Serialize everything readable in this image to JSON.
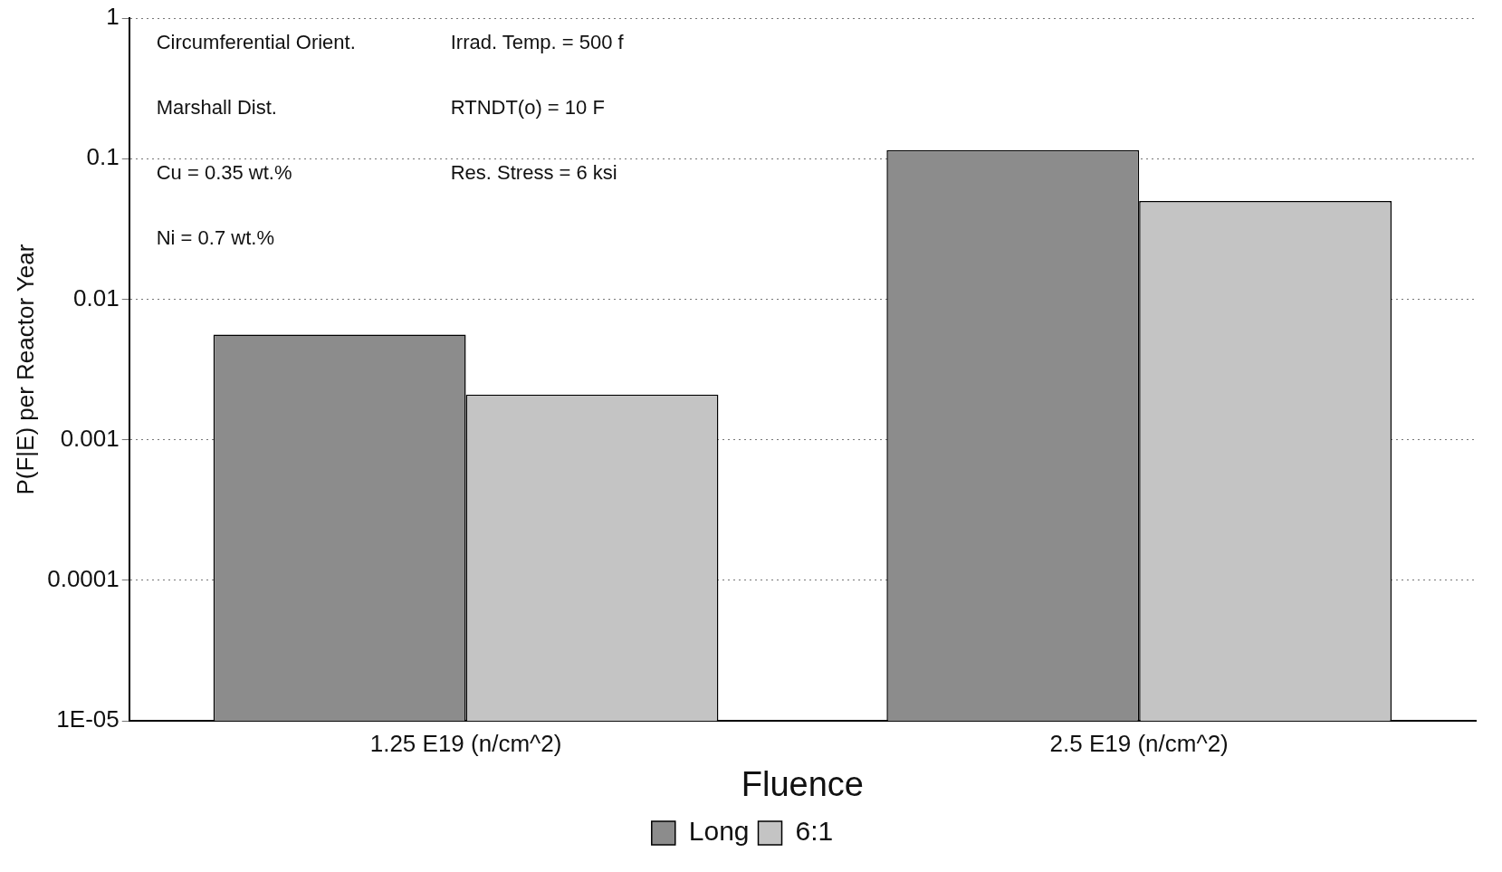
{
  "chart_data": {
    "type": "bar",
    "xlabel": "Fluence",
    "ylabel": "P(F|E) per Reactor Year",
    "categories": [
      "1.25 E19 (n/cm^2)",
      "2.5 E19 (n/cm^2)"
    ],
    "series": [
      {
        "name": "Long",
        "color": "#8c8c8c",
        "values": [
          0.0056,
          0.115
        ]
      },
      {
        "name": "6:1",
        "color": "#c4c4c4",
        "values": [
          0.0021,
          0.05
        ]
      }
    ],
    "log": "y",
    "ylim": [
      1e-05,
      1
    ],
    "yticks": [
      1,
      0.1,
      0.01,
      0.001,
      0.0001,
      {
        "value": 1e-05,
        "label": "1E-05"
      }
    ],
    "grid": "y",
    "legend": "bottom",
    "annotations": [
      "Circumferential Orient.",
      "Irrad. Temp. = 500 f",
      "Marshall Dist.",
      "RTNDT(o) = 10 F",
      "Cu = 0.35 wt.%",
      "Res. Stress = 6 ksi",
      "Ni = 0.7 wt.%"
    ]
  }
}
